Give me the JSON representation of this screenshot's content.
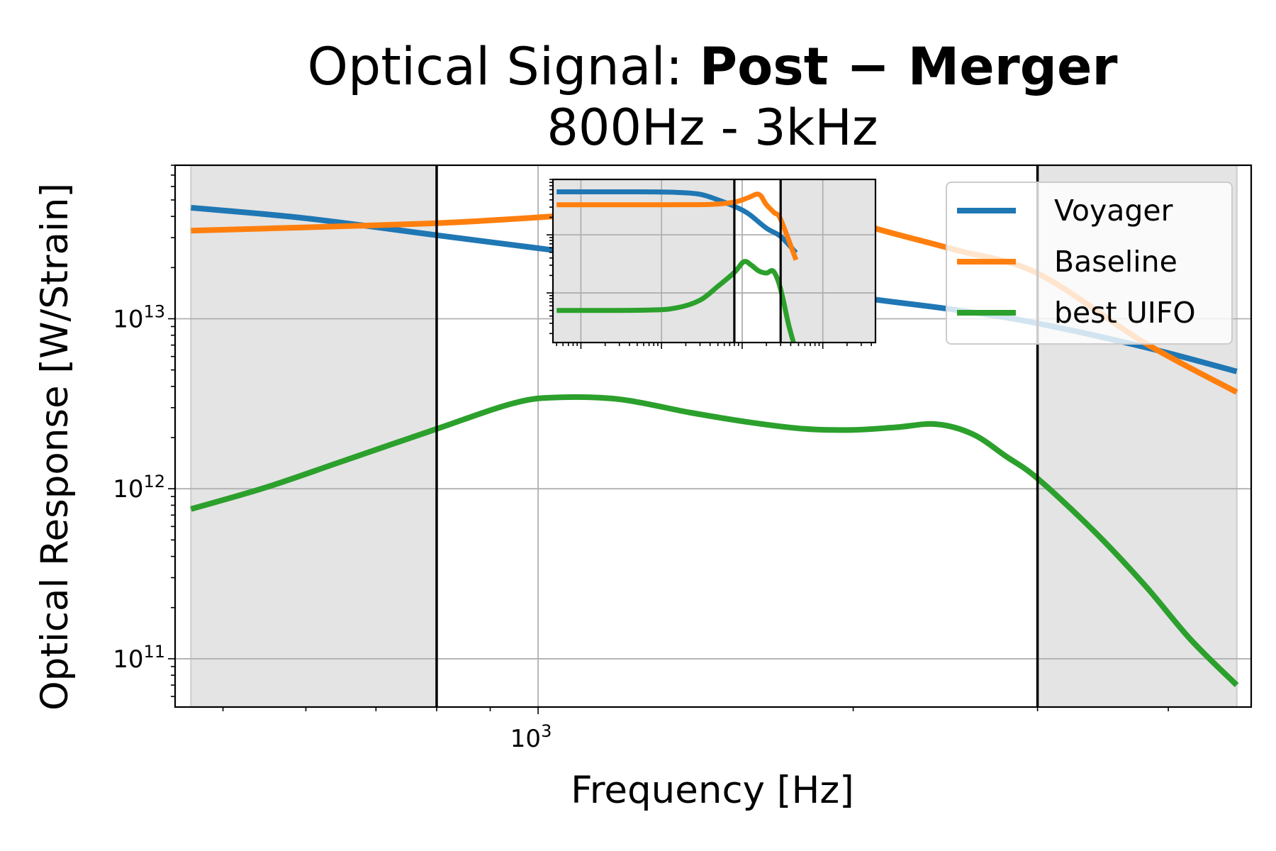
{
  "chart_data": [
    {
      "type": "line",
      "title": "Optical Signal:",
      "title_bold": "Post − Merger",
      "subtitle": "800Hz - 3kHz",
      "xlabel": "Frequency [Hz]",
      "ylabel": "Optical Response [W/Strain]",
      "xscale": "log",
      "yscale": "log",
      "xlim": [
        450,
        4800
      ],
      "ylim": [
        52000000000.0,
        80000000000000.0
      ],
      "x_tick_labels": [
        {
          "value": 1000,
          "base": "10",
          "exp": "3"
        }
      ],
      "y_tick_labels": [
        {
          "value": 100000000000.0,
          "base": "10",
          "exp": "11"
        },
        {
          "value": 1000000000000.0,
          "base": "10",
          "exp": "12"
        },
        {
          "value": 10000000000000.0,
          "base": "10",
          "exp": "13"
        }
      ],
      "grid": true,
      "legend": "top-right",
      "shaded_bands": [
        [
          466,
          800
        ],
        [
          3000,
          4650
        ]
      ],
      "vertical_lines": [
        800,
        3000
      ],
      "series": [
        {
          "name": "Voyager",
          "color": "#1f77b4",
          "x": [
            466,
            600,
            800,
            1000,
            1300,
            1600,
            2000,
            2500,
            3000,
            3800,
            4650
          ],
          "y": [
            45000000000000.0,
            39000000000000.0,
            31000000000000.0,
            26000000000000.0,
            21000000000000.0,
            17000000000000.0,
            13500000000000.0,
            11300000000000.0,
            9400000000000.0,
            6800000000000.0,
            4900000000000.0
          ]
        },
        {
          "name": "Baseline",
          "color": "#ff7f0e",
          "x": [
            466,
            600,
            800,
            1000,
            1200,
            1400,
            1600,
            1800,
            2100,
            2500,
            3000,
            3800,
            4650
          ],
          "y": [
            33000000000000.0,
            34500000000000.0,
            36500000000000.0,
            39500000000000.0,
            43000000000000.0,
            47500000000000.0,
            50000000000000.0,
            46000000000000.0,
            34000000000000.0,
            25500000000000.0,
            18500000000000.0,
            7200000000000.0,
            3700000000000.0
          ]
        },
        {
          "name": "best UIFO",
          "color": "#2ca02c",
          "x": [
            466,
            550,
            650,
            800,
            950,
            1050,
            1200,
            1400,
            1600,
            1800,
            2000,
            2200,
            2400,
            2600,
            2800,
            3000,
            3400,
            3800,
            4200,
            4650
          ],
          "y": [
            760000000000.0,
            1020000000000.0,
            1450000000000.0,
            2250000000000.0,
            3200000000000.0,
            3450000000000.0,
            3350000000000.0,
            2800000000000.0,
            2450000000000.0,
            2250000000000.0,
            2220000000000.0,
            2300000000000.0,
            2400000000000.0,
            2100000000000.0,
            1550000000000.0,
            1150000000000.0,
            560000000000.0,
            270000000000.0,
            130000000000.0,
            70000000000.0
          ]
        }
      ]
    },
    {
      "type": "line",
      "role": "inset",
      "xscale": "log",
      "yscale": "log",
      "xlim": [
        4.5,
        45000
      ],
      "ylim": [
        140000000000.0,
        90000000000000.0
      ],
      "grid": true,
      "vertical_lines": [
        800,
        3000
      ],
      "series": [
        {
          "name": "Voyager",
          "color": "#1f77b4",
          "x": [
            5,
            50,
            150,
            300,
            500,
            800,
            1200,
            2000,
            3000,
            4650
          ],
          "y": [
            55000000000000.0,
            55000000000000.0,
            54000000000000.0,
            50000000000000.0,
            40000000000000.0,
            31000000000000.0,
            23000000000000.0,
            13000000000000.0,
            9400000000000.0,
            4900000000000.0
          ]
        },
        {
          "name": "Baseline",
          "color": "#ff7f0e",
          "x": [
            5,
            100,
            400,
            800,
            1200,
            1500,
            1700,
            2000,
            2500,
            3000,
            4650
          ],
          "y": [
            33000000000000.0,
            33000000000000.0,
            33500000000000.0,
            36500000000000.0,
            44000000000000.0,
            50000000000000.0,
            47000000000000.0,
            33000000000000.0,
            24000000000000.0,
            18500000000000.0,
            3700000000000.0
          ]
        },
        {
          "name": "best UIFO",
          "color": "#2ca02c",
          "x": [
            5,
            60,
            150,
            300,
            500,
            800,
            1050,
            1300,
            1600,
            2000,
            2400,
            2800,
            3200,
            3800,
            4650
          ],
          "y": [
            500000000000.0,
            505000000000.0,
            550000000000.0,
            750000000000.0,
            1300000000000.0,
            2250000000000.0,
            3450000000000.0,
            3000000000000.0,
            2400000000000.0,
            2200000000000.0,
            2400000000000.0,
            1600000000000.0,
            800000000000.0,
            270000000000.0,
            100000000000.0
          ]
        }
      ]
    }
  ]
}
